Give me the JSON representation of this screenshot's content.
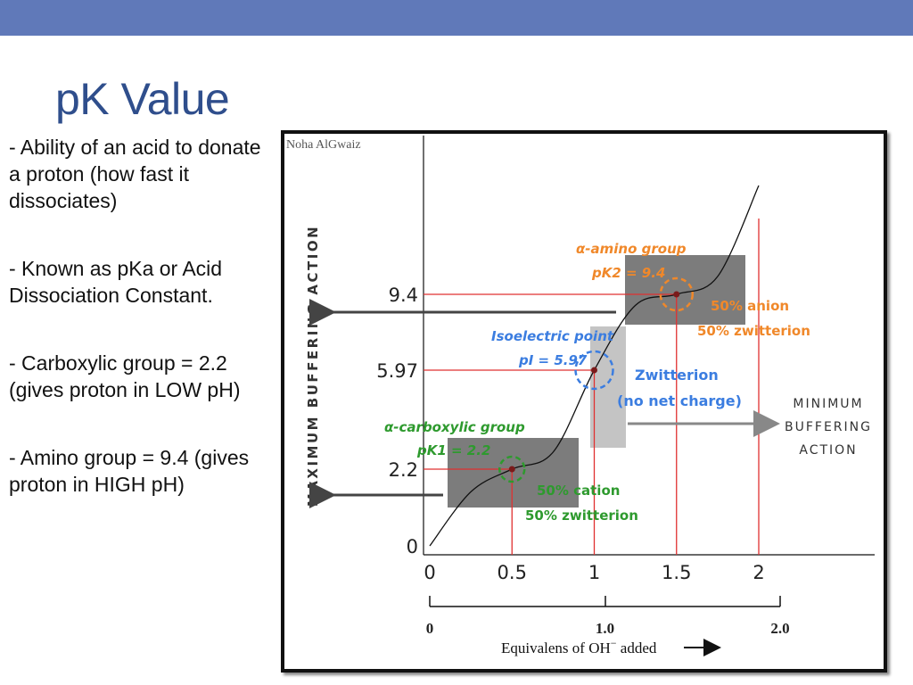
{
  "slide": {
    "title": "pK Value",
    "bullets": [
      "- Ability of an acid to donate a proton (how fast it dissociates)",
      "- Known as pKa or Acid Dissociation Constant.",
      "- Carboxylic group = 2.2 (gives proton in LOW pH)",
      "- Amino group = 9.4 (gives proton in HIGH pH)"
    ]
  },
  "figure": {
    "watermark": "Noha AlGwaiz",
    "y_axis_label": "MAXIMUM BUFFERING ACTION",
    "min_label": [
      "MINIMUM",
      "BUFFERING",
      "ACTION"
    ],
    "amino_group": {
      "title": "α-amino group",
      "pk": "pK2 = 9.4",
      "line1": "50% anion",
      "line2": "50% zwitterion"
    },
    "isoelectric": {
      "title": "Isoelectric point",
      "pi": "pI = 5.97",
      "line1": "Zwitterion",
      "line2": "(no net charge)"
    },
    "carboxyl_group": {
      "title": "α-carboxylic group",
      "pk": "pK1 = 2.2",
      "line1": "50% cation",
      "line2": "50% zwitterion"
    },
    "x_axis_title": "Equivalens of OH",
    "x_axis_suffix": " added",
    "colors": {
      "orange": "#f0882a",
      "blue": "#3b7de0",
      "green": "#2e9a2e",
      "red": "#e03030",
      "gray_box": "#7c7c7c"
    }
  },
  "chart_data": {
    "type": "line",
    "x": [
      0,
      0.25,
      0.5,
      0.75,
      1.0,
      1.25,
      1.5,
      1.75,
      2.0
    ],
    "y": [
      0,
      1.55,
      2.2,
      2.85,
      5.97,
      8.9,
      9.4,
      10.0,
      12.9
    ],
    "x_ticks": [
      "0",
      "0.5",
      "1",
      "1.5",
      "2"
    ],
    "y_ticks": [
      "0",
      "2.2",
      "5.97",
      "9.4"
    ],
    "lower_axis_ticks": [
      "0",
      "1.0",
      "2.0"
    ],
    "marked_points": [
      {
        "x": 0.5,
        "y": 2.2
      },
      {
        "x": 1.0,
        "y": 5.97
      },
      {
        "x": 1.5,
        "y": 9.4
      }
    ],
    "vertical_guides": [
      0.5,
      1,
      1.5,
      2
    ]
  }
}
